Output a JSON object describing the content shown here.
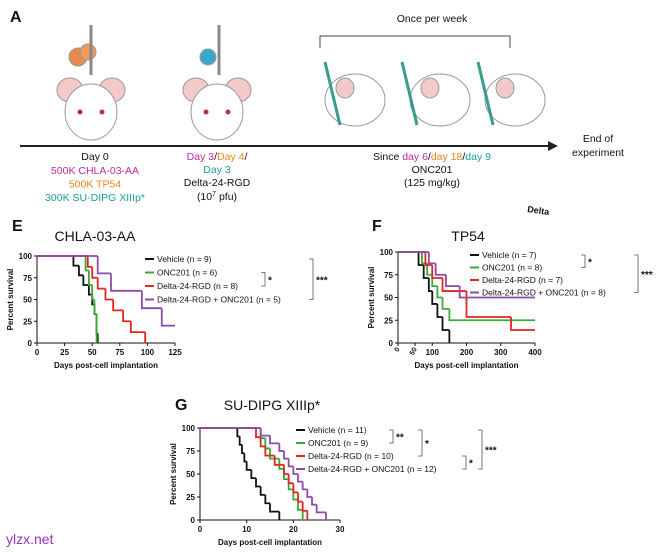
{
  "panel_a": {
    "label": "A",
    "once_per_week": "Once per week",
    "end_of": "End of",
    "experiment": "experiment",
    "day0": {
      "title": "Day 0",
      "lines": [
        {
          "text": "500K CHLA-03-AA",
          "color": "#c0289c"
        },
        {
          "text": "500K TP54",
          "color": "#e8861a"
        },
        {
          "text": "300K SU-DIPG XIIIp*",
          "color": "#1a9c9c"
        }
      ]
    },
    "virus": {
      "day_a": "Day 3",
      "slash": "/",
      "day_b": "Day 4",
      "day_c": "Day 3",
      "agent": "Delta-24-RGD",
      "dose": "(10",
      "exp": "7",
      "unit": " pfu)"
    },
    "drug": {
      "since": "Since ",
      "day_a": "day 6",
      "slash": "/",
      "day_b": "day 18",
      "day_c": "day 9",
      "agent": "ONC201",
      "dose": "(125 mg/kg)"
    },
    "cut_text": "Delta"
  },
  "watermark": "ylzx.net",
  "chart_data": [
    {
      "type": "line",
      "panel": "E",
      "title": "CHLA-03-AA",
      "xlabel": "Days post-cell implantation",
      "ylabel": "Percent survival",
      "xlim": [
        0,
        125
      ],
      "ylim": [
        0,
        100
      ],
      "xticks": [
        0,
        25,
        50,
        75,
        100,
        125
      ],
      "yticks": [
        0,
        25,
        50,
        75,
        100
      ],
      "series": [
        {
          "name": "Vehicle (n = 9)",
          "color": "#111111",
          "x": [
            0,
            33,
            38,
            42,
            47,
            50,
            52,
            54,
            55
          ],
          "values": [
            100,
            88.9,
            77.8,
            66.7,
            55.6,
            44.4,
            33.3,
            11.1,
            0
          ]
        },
        {
          "name": "ONC201 (n = 6)",
          "color": "#3aaa35",
          "x": [
            0,
            44,
            47,
            50,
            52,
            54
          ],
          "values": [
            100,
            83.3,
            66.7,
            50,
            33.3,
            0
          ]
        },
        {
          "name": "Delta-24-RGD (n = 8)",
          "color": "#e3261f",
          "x": [
            0,
            46,
            50,
            55,
            62,
            69,
            78,
            85,
            98
          ],
          "values": [
            100,
            87.5,
            75,
            62.5,
            50,
            37.5,
            25,
            12.5,
            0
          ]
        },
        {
          "name": "Delta-24-RGD + ONC201 (n = 5)",
          "color": "#8e4aa8",
          "x": [
            0,
            55,
            67,
            95,
            113,
            125
          ],
          "values": [
            100,
            80,
            60,
            40,
            20,
            20
          ]
        }
      ],
      "annotations": [
        "*",
        "***"
      ]
    },
    {
      "type": "line",
      "panel": "F",
      "title": "TP54",
      "xlabel": "Days post-cell implantation",
      "ylabel": "Percent survival",
      "xlim": [
        0,
        400
      ],
      "ylim": [
        0,
        100
      ],
      "xticks": [
        0,
        50,
        100,
        200,
        300,
        400
      ],
      "yticks": [
        0,
        25,
        50,
        75,
        100
      ],
      "series": [
        {
          "name": "Vehicle (n = 7)",
          "color": "#111111",
          "x": [
            0,
            60,
            75,
            90,
            100,
            115,
            130,
            150
          ],
          "values": [
            100,
            85.7,
            71.4,
            57.1,
            42.9,
            28.6,
            14.3,
            0
          ]
        },
        {
          "name": "ONC201 (n = 8)",
          "color": "#3aaa35",
          "x": [
            0,
            70,
            85,
            100,
            115,
            130,
            150,
            400
          ],
          "values": [
            100,
            87.5,
            75,
            62.5,
            50,
            37.5,
            25,
            25
          ]
        },
        {
          "name": "Delta-24-RGD (n = 7)",
          "color": "#e3261f",
          "x": [
            0,
            80,
            100,
            130,
            200,
            330,
            400
          ],
          "values": [
            100,
            85.7,
            71.4,
            57.1,
            28.6,
            14.3,
            14.3
          ]
        },
        {
          "name": "Delta-24-RGD + ONC201 (n = 8)",
          "color": "#8e4aa8",
          "x": [
            0,
            90,
            110,
            140,
            180,
            400
          ],
          "values": [
            100,
            87.5,
            75,
            62.5,
            50,
            50
          ]
        }
      ],
      "annotations": [
        "*",
        "***"
      ]
    },
    {
      "type": "line",
      "panel": "G",
      "title": "SU-DIPG XIIIp*",
      "xlabel": "Days post-cell implantation",
      "ylabel": "Percent survival",
      "xlim": [
        0,
        30
      ],
      "ylim": [
        0,
        100
      ],
      "xticks": [
        0,
        10,
        20,
        30
      ],
      "yticks": [
        0,
        25,
        50,
        75,
        100
      ],
      "series": [
        {
          "name": "Vehicle (n = 11)",
          "color": "#111111",
          "x": [
            0,
            8,
            8.5,
            9,
            9.5,
            10,
            11,
            12,
            13,
            14,
            15,
            17
          ],
          "values": [
            100,
            90.9,
            81.8,
            72.7,
            63.6,
            54.5,
            45.5,
            36.4,
            27.3,
            18.2,
            9.1,
            0
          ]
        },
        {
          "name": "ONC201 (n = 9)",
          "color": "#3aaa35",
          "x": [
            0,
            13,
            14,
            15,
            17,
            18,
            19,
            20,
            21,
            22
          ],
          "values": [
            100,
            88.9,
            77.8,
            66.7,
            55.6,
            44.4,
            33.3,
            22.2,
            11.1,
            0
          ]
        },
        {
          "name": "Delta-24-RGD (n = 10)",
          "color": "#e3261f",
          "x": [
            0,
            12,
            13,
            14,
            16,
            18,
            19,
            20,
            21,
            22,
            23
          ],
          "values": [
            100,
            90,
            80,
            70,
            60,
            50,
            40,
            30,
            20,
            10,
            0
          ]
        },
        {
          "name": "Delta-24-RGD + ONC201 (n = 12)",
          "color": "#8e4aa8",
          "x": [
            0,
            13,
            15,
            17,
            18,
            19,
            20,
            21,
            22,
            23,
            24,
            25,
            27
          ],
          "values": [
            100,
            91.7,
            83.3,
            75,
            66.7,
            58.3,
            50,
            41.7,
            33.3,
            25,
            16.7,
            8.3,
            0
          ]
        }
      ],
      "annotations": [
        "**",
        "*",
        "*",
        "***"
      ]
    }
  ]
}
